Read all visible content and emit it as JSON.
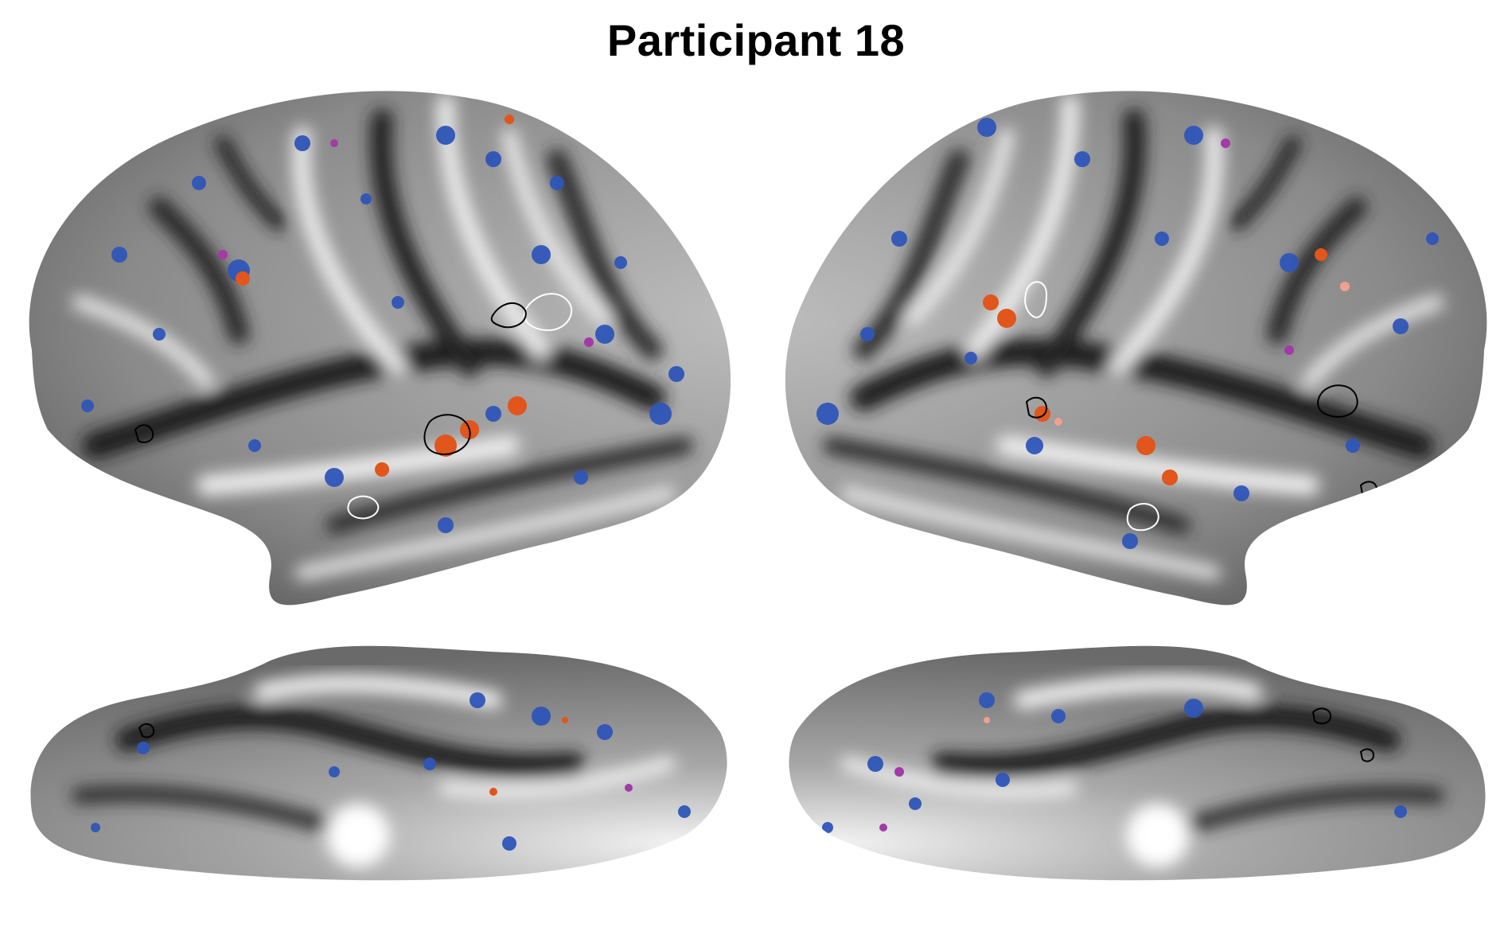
{
  "title": "Participant 18",
  "colors": {
    "background": "#ffffff",
    "cortex_dark": "#2b2b2b",
    "cortex_light": "#e8e8e8",
    "blue_region": "#2f55b8",
    "orange_region": "#e0561c",
    "magenta_region": "#a23aa8",
    "pink_region": "#f2a08c",
    "outline_black": "#000000",
    "outline_white": "#ffffff"
  },
  "views": [
    {
      "name": "left-hemisphere-lateral"
    },
    {
      "name": "right-hemisphere-lateral"
    },
    {
      "name": "left-hemisphere-medial"
    },
    {
      "name": "right-hemisphere-medial"
    }
  ]
}
